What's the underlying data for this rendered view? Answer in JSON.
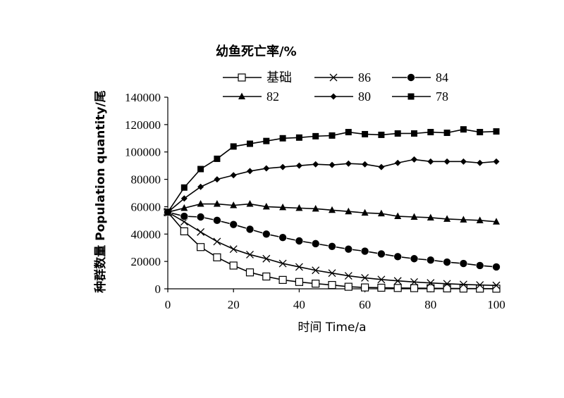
{
  "chart_data": {
    "type": "line",
    "legend_title": "幼鱼死亡率/%",
    "legend_position": "top",
    "xlabel": "时间 Time/a",
    "ylabel": "种群数量 Population quantity/尾",
    "xlim": [
      0,
      100
    ],
    "ylim": [
      0,
      140000
    ],
    "xticks": [
      0,
      20,
      40,
      60,
      80,
      100
    ],
    "yticks": [
      0,
      20000,
      40000,
      60000,
      80000,
      100000,
      120000,
      140000
    ],
    "x": [
      0,
      5,
      10,
      15,
      20,
      25,
      30,
      35,
      40,
      45,
      50,
      55,
      60,
      65,
      70,
      75,
      80,
      85,
      90,
      95,
      100
    ],
    "grid": false,
    "series": [
      {
        "name": "基础",
        "marker": "open-square",
        "values": [
          56000,
          42000,
          30500,
          23000,
          17000,
          12000,
          9000,
          6500,
          5000,
          3800,
          2800,
          1500,
          1000,
          800,
          600,
          500,
          400,
          300,
          200,
          150,
          100
        ]
      },
      {
        "name": "86",
        "marker": "cross",
        "values": [
          56000,
          49000,
          41500,
          34500,
          29000,
          25000,
          22000,
          18500,
          16000,
          13500,
          11500,
          9500,
          8000,
          6800,
          5800,
          5000,
          4300,
          3700,
          3200,
          2800,
          2500
        ]
      },
      {
        "name": "84",
        "marker": "circle",
        "values": [
          56000,
          53000,
          52500,
          50000,
          47000,
          43500,
          40000,
          37500,
          35000,
          33000,
          31000,
          29000,
          27500,
          25500,
          23500,
          22000,
          21000,
          19500,
          18500,
          17000,
          16000
        ]
      },
      {
        "name": "82",
        "marker": "triangle",
        "values": [
          56000,
          59000,
          62000,
          62000,
          61000,
          62000,
          60000,
          59500,
          59000,
          58500,
          57500,
          56500,
          55500,
          55000,
          53000,
          52500,
          52000,
          51000,
          50500,
          50000,
          49000
        ]
      },
      {
        "name": "80",
        "marker": "diamond",
        "values": [
          56000,
          66000,
          74500,
          80000,
          83000,
          86000,
          88000,
          89000,
          90000,
          91000,
          90500,
          91500,
          91000,
          89000,
          92000,
          94500,
          93000,
          93000,
          93000,
          92000,
          93000
        ]
      },
      {
        "name": "78",
        "marker": "square",
        "values": [
          56000,
          74000,
          87500,
          95000,
          104000,
          106000,
          108000,
          110000,
          110500,
          111500,
          112000,
          114500,
          113000,
          112500,
          113500,
          113500,
          114500,
          114000,
          116500,
          114500,
          115000
        ]
      }
    ]
  }
}
